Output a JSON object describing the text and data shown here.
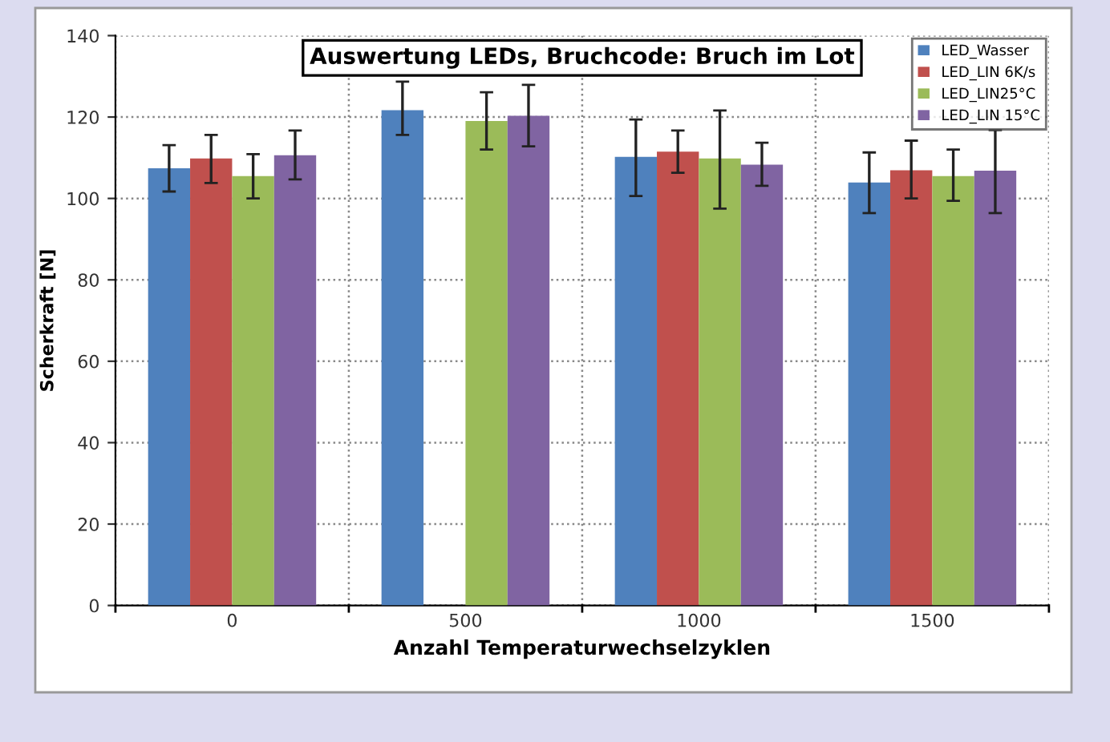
{
  "chart_data": {
    "type": "bar",
    "title": "Auswertung LEDs, Bruchcode: Bruch im Lot",
    "xlabel": "Anzahl Temperaturwechselzyklen",
    "ylabel": "Scherkraft [N]",
    "categories": [
      "0",
      "500",
      "1000",
      "1500"
    ],
    "series": [
      {
        "name": "LED_Wasser",
        "color": "#4f81bd",
        "values": [
          107.4,
          121.7,
          110.2,
          103.9
        ],
        "errors": [
          [
            101.7,
            113.1
          ],
          [
            115.6,
            128.7
          ],
          [
            100.6,
            119.4
          ],
          [
            96.4,
            111.3
          ]
        ]
      },
      {
        "name": "LED_LIN 6K/s",
        "color": "#c0504d",
        "values": [
          109.8,
          null,
          111.5,
          106.9
        ],
        "errors": [
          [
            103.8,
            115.6
          ],
          null,
          [
            106.3,
            116.7
          ],
          [
            100,
            114.2
          ]
        ]
      },
      {
        "name": "LED_LIN25°C",
        "color": "#9bbb59",
        "values": [
          105.5,
          119,
          109.8,
          105.5
        ],
        "errors": [
          [
            100,
            110.9
          ],
          [
            112,
            126.1
          ],
          [
            97.5,
            121.6
          ],
          [
            99.4,
            112
          ]
        ]
      },
      {
        "name": "LED_LIN 15°C",
        "color": "#8064a2",
        "values": [
          110.6,
          120.3,
          108.3,
          106.8
        ],
        "errors": [
          [
            104.7,
            116.7
          ],
          [
            112.8,
            127.9
          ],
          [
            103.1,
            113.7
          ],
          [
            96.4,
            116.8
          ]
        ]
      }
    ],
    "ylim": [
      0,
      140
    ],
    "yticks": [
      0,
      20,
      40,
      60,
      80,
      100,
      120,
      140
    ],
    "grid": true,
    "legend": "top right"
  }
}
